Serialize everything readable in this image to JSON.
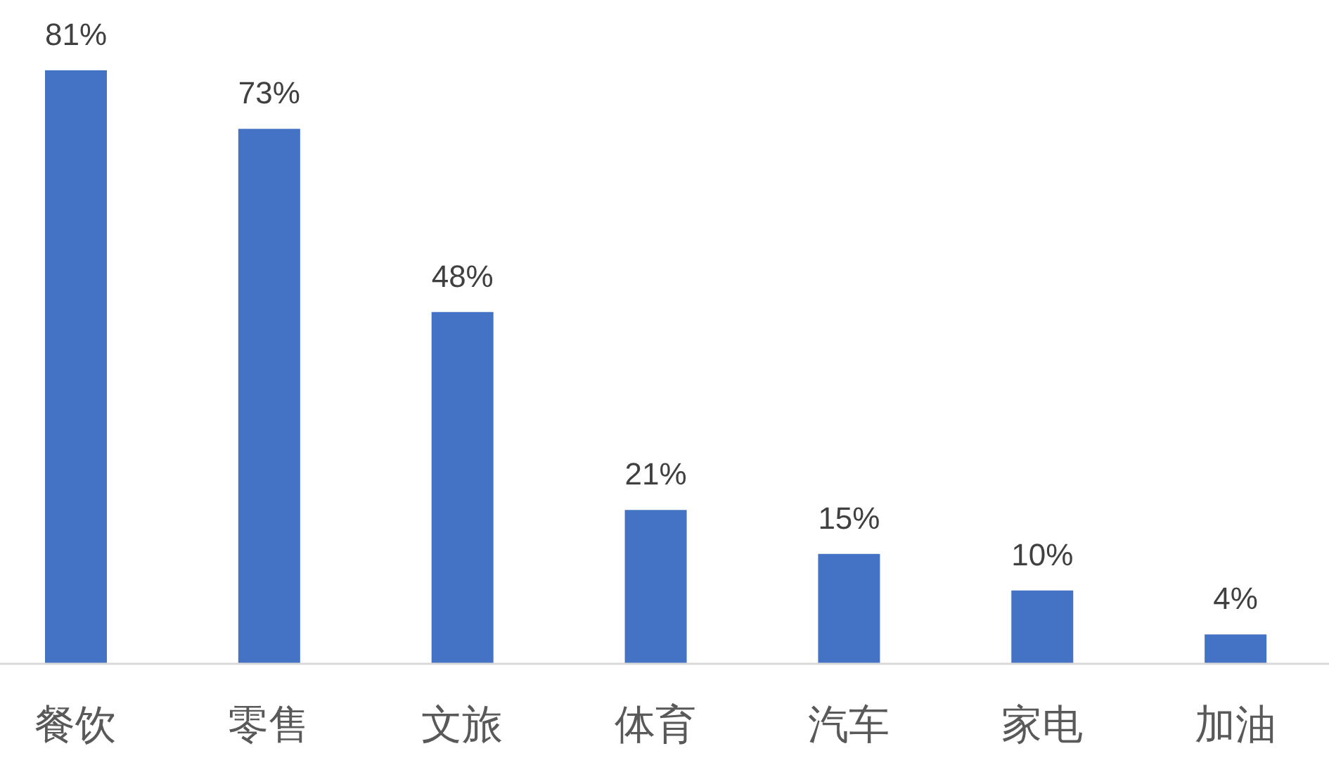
{
  "chart_data": {
    "type": "bar",
    "categories": [
      "餐饮",
      "零售",
      "文旅",
      "体育",
      "汽车",
      "家电",
      "加油"
    ],
    "values": [
      81,
      73,
      48,
      21,
      15,
      10,
      4
    ],
    "value_labels": [
      "81%",
      "73%",
      "48%",
      "21%",
      "15%",
      "10%",
      "4%"
    ],
    "color": "#4472c4"
  }
}
